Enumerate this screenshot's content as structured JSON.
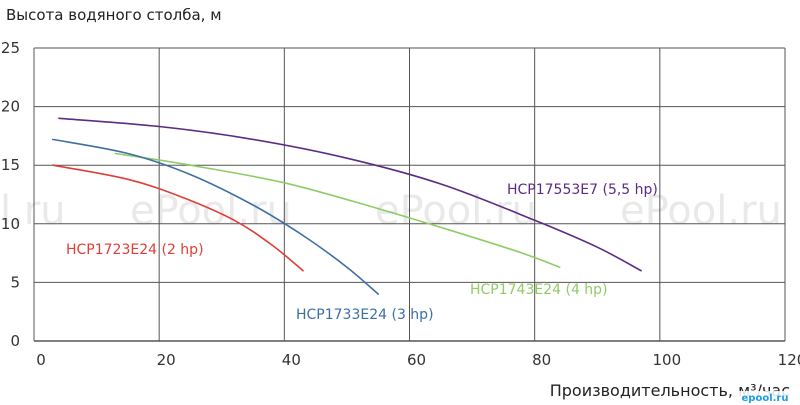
{
  "chart_data": {
    "type": "line",
    "title": "",
    "xlabel": "Производительность, м³/час",
    "ylabel": "Высота водяного столба, м",
    "xlim": [
      0,
      120
    ],
    "ylim": [
      0,
      25
    ],
    "x_ticks": [
      0,
      20,
      40,
      60,
      80,
      100,
      120
    ],
    "y_ticks": [
      0,
      5,
      10,
      15,
      20,
      25
    ],
    "grid": true,
    "series": [
      {
        "name": "HCP17553E7 (5,5 hp)",
        "color": "#5b2c83",
        "points": [
          [
            4,
            19.0
          ],
          [
            20,
            18.3
          ],
          [
            35,
            17.2
          ],
          [
            50,
            15.6
          ],
          [
            65,
            13.4
          ],
          [
            80,
            10.3
          ],
          [
            90,
            8.0
          ],
          [
            97,
            6.0
          ]
        ]
      },
      {
        "name": "HCP1743E24 (4 hp)",
        "color": "#8fcc66",
        "points": [
          [
            13,
            16.0
          ],
          [
            25,
            15.0
          ],
          [
            40,
            13.5
          ],
          [
            55,
            11.3
          ],
          [
            68,
            9.2
          ],
          [
            78,
            7.5
          ],
          [
            84,
            6.3
          ]
        ]
      },
      {
        "name": "HCP1733E24 (3 hp)",
        "color": "#3e6fa3",
        "points": [
          [
            3,
            17.2
          ],
          [
            15,
            16.0
          ],
          [
            25,
            14.2
          ],
          [
            35,
            11.6
          ],
          [
            43,
            9.0
          ],
          [
            50,
            6.3
          ],
          [
            55,
            4.0
          ]
        ]
      },
      {
        "name": "HCP1723E24 (2 hp)",
        "color": "#df3e36",
        "points": [
          [
            3,
            15.0
          ],
          [
            15,
            13.8
          ],
          [
            24,
            12.2
          ],
          [
            32,
            10.3
          ],
          [
            38,
            8.2
          ],
          [
            43,
            6.0
          ]
        ]
      }
    ]
  },
  "watermark": {
    "text": "ePool.ru",
    "partial_text": "l.ru",
    "logo": "epool.ru"
  }
}
